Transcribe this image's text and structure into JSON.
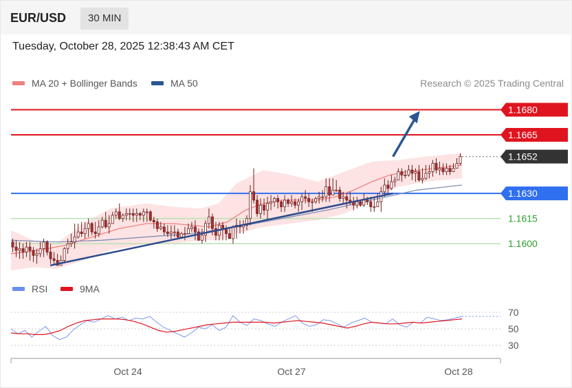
{
  "header": {
    "pair": "EUR/USD",
    "timeframe": "30 MIN"
  },
  "datetime": "Tuesday, October 28, 2025 12:38:43 AM CET",
  "legend": [
    {
      "label": "MA 20 + Bollinger Bands",
      "color": "#f08080"
    },
    {
      "label": "MA 50",
      "color": "#2b5592"
    }
  ],
  "credit": "Research © 2025 Trading Central",
  "chart_data": {
    "type": "candlestick",
    "x_ticks": [
      "Oct 24",
      "Oct 27",
      "Oct 28"
    ],
    "ylim": [
      1.1582,
      1.1688
    ],
    "levels": [
      {
        "value": 1.168,
        "label": "1.1680",
        "kind": "resistance",
        "color": "#e0141e"
      },
      {
        "value": 1.1665,
        "label": "1.1665",
        "kind": "resistance",
        "color": "#e0141e"
      },
      {
        "value": 1.1652,
        "label": "1.1652",
        "kind": "last_price",
        "color": "#333333"
      },
      {
        "value": 1.163,
        "label": "1.1630",
        "kind": "pivot",
        "color": "#2f6ff0"
      },
      {
        "value": 1.1615,
        "label": "1.1615",
        "kind": "support",
        "color": "#2e9d2e"
      },
      {
        "value": 1.16,
        "label": "1.1600",
        "kind": "support",
        "color": "#2e9d2e"
      }
    ],
    "trendline": [
      [
        0.087,
        1.1587
      ],
      [
        0.847,
        1.163
      ]
    ],
    "forecast_arrow": [
      [
        0.847,
        1.1652
      ],
      [
        0.905,
        1.1678
      ]
    ],
    "candles": [
      [
        1.1601,
        1.1598,
        1.1603,
        1.1595
      ],
      [
        1.1598,
        1.1596,
        1.1602,
        1.1592
      ],
      [
        1.1596,
        1.1597,
        1.1601,
        1.1591
      ],
      [
        1.1597,
        1.1595,
        1.16,
        1.1591
      ],
      [
        1.1595,
        1.1598,
        1.1601,
        1.1592
      ],
      [
        1.1598,
        1.1596,
        1.1601,
        1.159
      ],
      [
        1.1596,
        1.1593,
        1.1598,
        1.1589
      ],
      [
        1.1593,
        1.1594,
        1.1597,
        1.1588
      ],
      [
        1.1594,
        1.1597,
        1.1601,
        1.1592
      ],
      [
        1.1597,
        1.1601,
        1.1603,
        1.1592
      ],
      [
        1.1601,
        1.1595,
        1.1602,
        1.1593
      ],
      [
        1.1595,
        1.1591,
        1.16,
        1.1588
      ],
      [
        1.1591,
        1.159,
        1.1595,
        1.1587
      ],
      [
        1.159,
        1.1587,
        1.1594,
        1.1587
      ],
      [
        1.1587,
        1.159,
        1.1593,
        1.1587
      ],
      [
        1.159,
        1.1597,
        1.1598,
        1.1589
      ],
      [
        1.1597,
        1.16,
        1.1603,
        1.1594
      ],
      [
        1.16,
        1.1601,
        1.1606,
        1.1598
      ],
      [
        1.1601,
        1.1604,
        1.1612,
        1.1597
      ],
      [
        1.1604,
        1.1607,
        1.1612,
        1.1603
      ],
      [
        1.1607,
        1.1606,
        1.1613,
        1.1604
      ],
      [
        1.1606,
        1.1609,
        1.1613,
        1.1603
      ],
      [
        1.1609,
        1.1612,
        1.1615,
        1.1604
      ],
      [
        1.1612,
        1.1607,
        1.1613,
        1.1605
      ],
      [
        1.1607,
        1.1606,
        1.1613,
        1.1603
      ],
      [
        1.1606,
        1.161,
        1.1614,
        1.1604
      ],
      [
        1.161,
        1.1614,
        1.1616,
        1.1609
      ],
      [
        1.1614,
        1.161,
        1.1619,
        1.1609
      ],
      [
        1.161,
        1.1612,
        1.1617,
        1.1606
      ],
      [
        1.1612,
        1.1617,
        1.1619,
        1.1612
      ],
      [
        1.1617,
        1.1619,
        1.1621,
        1.1615
      ],
      [
        1.1619,
        1.1615,
        1.1624,
        1.1614
      ],
      [
        1.1615,
        1.1617,
        1.1618,
        1.1613
      ],
      [
        1.1617,
        1.1618,
        1.1621,
        1.1614
      ],
      [
        1.1618,
        1.1618,
        1.1621,
        1.1614
      ],
      [
        1.1618,
        1.1617,
        1.1621,
        1.1613
      ],
      [
        1.1617,
        1.1618,
        1.1621,
        1.1613
      ],
      [
        1.1618,
        1.1617,
        1.1619,
        1.1614
      ],
      [
        1.1617,
        1.1619,
        1.1621,
        1.1613
      ],
      [
        1.1619,
        1.1619,
        1.1621,
        1.1613
      ],
      [
        1.1619,
        1.1614,
        1.162,
        1.1613
      ],
      [
        1.1614,
        1.1613,
        1.1616,
        1.1609
      ],
      [
        1.1613,
        1.1609,
        1.1615,
        1.1607
      ],
      [
        1.1609,
        1.161,
        1.1613,
        1.1608
      ],
      [
        1.161,
        1.1607,
        1.1612,
        1.1605
      ],
      [
        1.1607,
        1.1606,
        1.1611,
        1.1604
      ],
      [
        1.1606,
        1.1607,
        1.1611,
        1.1603
      ],
      [
        1.1607,
        1.1607,
        1.1611,
        1.1604
      ],
      [
        1.1607,
        1.1604,
        1.1609,
        1.1603
      ],
      [
        1.1604,
        1.1606,
        1.1607,
        1.1603
      ],
      [
        1.1606,
        1.1606,
        1.161,
        1.1602
      ],
      [
        1.1606,
        1.1609,
        1.1612,
        1.1606
      ],
      [
        1.1609,
        1.161,
        1.1613,
        1.1607
      ],
      [
        1.161,
        1.1607,
        1.1614,
        1.1602
      ],
      [
        1.1607,
        1.1602,
        1.1609,
        1.1602
      ],
      [
        1.1602,
        1.1605,
        1.1609,
        1.16
      ],
      [
        1.1605,
        1.1612,
        1.1614,
        1.1601
      ],
      [
        1.1612,
        1.1616,
        1.1621,
        1.1609
      ],
      [
        1.1616,
        1.1609,
        1.1618,
        1.1605
      ],
      [
        1.1609,
        1.1605,
        1.1613,
        1.1602
      ],
      [
        1.1605,
        1.1611,
        1.1613,
        1.1602
      ],
      [
        1.1611,
        1.1609,
        1.1613,
        1.1602
      ],
      [
        1.1609,
        1.1606,
        1.1611,
        1.1602
      ],
      [
        1.1606,
        1.1603,
        1.1609,
        1.1603
      ],
      [
        1.1603,
        1.161,
        1.1611,
        1.16
      ],
      [
        1.161,
        1.1611,
        1.1615,
        1.1603
      ],
      [
        1.1611,
        1.161,
        1.1614,
        1.1606
      ],
      [
        1.161,
        1.1611,
        1.1614,
        1.1606
      ],
      [
        1.1611,
        1.1615,
        1.1617,
        1.1608
      ],
      [
        1.1615,
        1.1631,
        1.1635,
        1.1611
      ],
      [
        1.1631,
        1.1626,
        1.1645,
        1.1624
      ],
      [
        1.1626,
        1.1618,
        1.1629,
        1.1616
      ],
      [
        1.1618,
        1.1623,
        1.1627,
        1.1615
      ],
      [
        1.1623,
        1.162,
        1.1627,
        1.1617
      ],
      [
        1.162,
        1.1624,
        1.1628,
        1.1614
      ],
      [
        1.1624,
        1.1625,
        1.1629,
        1.162
      ],
      [
        1.1625,
        1.1627,
        1.1628,
        1.1622
      ],
      [
        1.1627,
        1.1625,
        1.1629,
        1.1621
      ],
      [
        1.1625,
        1.1622,
        1.1626,
        1.1619
      ],
      [
        1.1622,
        1.1626,
        1.1629,
        1.1619
      ],
      [
        1.1626,
        1.1624,
        1.1627,
        1.1622
      ],
      [
        1.1624,
        1.1625,
        1.1629,
        1.1622
      ],
      [
        1.1625,
        1.1623,
        1.1627,
        1.1621
      ],
      [
        1.1623,
        1.1625,
        1.1627,
        1.1619
      ],
      [
        1.1625,
        1.1628,
        1.163,
        1.162
      ],
      [
        1.1628,
        1.1627,
        1.1632,
        1.1624
      ],
      [
        1.1627,
        1.1625,
        1.163,
        1.1622
      ],
      [
        1.1625,
        1.1625,
        1.1627,
        1.1619
      ],
      [
        1.1625,
        1.1627,
        1.1628,
        1.1624
      ],
      [
        1.1627,
        1.1628,
        1.1631,
        1.1624
      ],
      [
        1.1628,
        1.1628,
        1.1632,
        1.1625
      ],
      [
        1.1628,
        1.1634,
        1.1639,
        1.1625
      ],
      [
        1.1634,
        1.1629,
        1.1639,
        1.1625
      ],
      [
        1.1629,
        1.1632,
        1.1639,
        1.1629
      ],
      [
        1.1632,
        1.1632,
        1.1638,
        1.1631
      ],
      [
        1.1632,
        1.1627,
        1.1634,
        1.1625
      ],
      [
        1.1627,
        1.1628,
        1.1631,
        1.1624
      ],
      [
        1.1628,
        1.1626,
        1.163,
        1.1621
      ],
      [
        1.1626,
        1.1625,
        1.1631,
        1.1623
      ],
      [
        1.1625,
        1.1623,
        1.1628,
        1.162
      ],
      [
        1.1623,
        1.1625,
        1.1628,
        1.1621
      ],
      [
        1.1625,
        1.1623,
        1.1626,
        1.1622
      ],
      [
        1.1623,
        1.1626,
        1.163,
        1.1622
      ],
      [
        1.1626,
        1.1625,
        1.1628,
        1.1623
      ],
      [
        1.1625,
        1.1622,
        1.1628,
        1.1619
      ],
      [
        1.1622,
        1.1622,
        1.1627,
        1.1619
      ],
      [
        1.1622,
        1.1625,
        1.163,
        1.1622
      ],
      [
        1.1625,
        1.1631,
        1.1634,
        1.1619
      ],
      [
        1.1631,
        1.1635,
        1.1639,
        1.1628
      ],
      [
        1.1635,
        1.1633,
        1.1638,
        1.1629
      ],
      [
        1.1633,
        1.1637,
        1.1641,
        1.1632
      ],
      [
        1.1637,
        1.1638,
        1.164,
        1.1634
      ],
      [
        1.1638,
        1.1643,
        1.1645,
        1.1638
      ],
      [
        1.1643,
        1.1641,
        1.1645,
        1.1637
      ],
      [
        1.1641,
        1.1641,
        1.1644,
        1.1639
      ],
      [
        1.1641,
        1.1644,
        1.1647,
        1.164
      ],
      [
        1.1644,
        1.1642,
        1.1647,
        1.1638
      ],
      [
        1.1642,
        1.1643,
        1.1645,
        1.1637
      ],
      [
        1.1643,
        1.1638,
        1.1647,
        1.1637
      ],
      [
        1.1638,
        1.1639,
        1.1645,
        1.1636
      ],
      [
        1.1639,
        1.1642,
        1.1647,
        1.1638
      ],
      [
        1.1642,
        1.1643,
        1.1647,
        1.1639
      ],
      [
        1.1643,
        1.1648,
        1.165,
        1.164
      ],
      [
        1.1648,
        1.1644,
        1.1651,
        1.1642
      ],
      [
        1.1644,
        1.1645,
        1.1649,
        1.1641
      ],
      [
        1.1645,
        1.1643,
        1.1648,
        1.1641
      ],
      [
        1.1643,
        1.1645,
        1.1648,
        1.1641
      ],
      [
        1.1645,
        1.1643,
        1.1647,
        1.1641
      ],
      [
        1.1643,
        1.1645,
        1.1648,
        1.1643
      ],
      [
        1.1645,
        1.1648,
        1.1651,
        1.1645
      ],
      [
        1.1648,
        1.1652,
        1.1654,
        1.1647
      ]
    ],
    "ma20": [
      [
        0.0,
        1.1594
      ],
      [
        0.06,
        1.1596
      ],
      [
        0.12,
        1.1599
      ],
      [
        0.18,
        1.1604
      ],
      [
        0.24,
        1.1609
      ],
      [
        0.3,
        1.1612
      ],
      [
        0.36,
        1.1612
      ],
      [
        0.4,
        1.1611
      ],
      [
        0.44,
        1.161
      ],
      [
        0.48,
        1.1613
      ],
      [
        0.52,
        1.162
      ],
      [
        0.56,
        1.1624
      ],
      [
        0.6,
        1.1626
      ],
      [
        0.64,
        1.1626
      ],
      [
        0.68,
        1.1626
      ],
      [
        0.72,
        1.1628
      ],
      [
        0.76,
        1.1632
      ],
      [
        0.8,
        1.1637
      ],
      [
        0.84,
        1.1641
      ],
      [
        0.88,
        1.1643
      ],
      [
        0.94,
        1.1645
      ],
      [
        1.0,
        1.1647
      ]
    ],
    "ma50": [
      [
        0.0,
        1.1602
      ],
      [
        0.1,
        1.1601
      ],
      [
        0.2,
        1.1602
      ],
      [
        0.3,
        1.1604
      ],
      [
        0.4,
        1.1606
      ],
      [
        0.5,
        1.161
      ],
      [
        0.6,
        1.1615
      ],
      [
        0.7,
        1.162
      ],
      [
        0.8,
        1.1626
      ],
      [
        0.9,
        1.1632
      ],
      [
        1.0,
        1.1635
      ]
    ],
    "bb_upper": [
      [
        0.0,
        1.1608
      ],
      [
        0.05,
        1.1602
      ],
      [
        0.1,
        1.16
      ],
      [
        0.16,
        1.1612
      ],
      [
        0.22,
        1.1621
      ],
      [
        0.3,
        1.1624
      ],
      [
        0.36,
        1.1622
      ],
      [
        0.42,
        1.1621
      ],
      [
        0.46,
        1.1624
      ],
      [
        0.5,
        1.1636
      ],
      [
        0.56,
        1.1644
      ],
      [
        0.62,
        1.1641
      ],
      [
        0.68,
        1.1637
      ],
      [
        0.74,
        1.1643
      ],
      [
        0.8,
        1.1649
      ],
      [
        0.86,
        1.165
      ],
      [
        0.92,
        1.1652
      ],
      [
        1.0,
        1.1654
      ]
    ],
    "bb_lower": [
      [
        0.0,
        1.1584
      ],
      [
        0.05,
        1.1586
      ],
      [
        0.1,
        1.1585
      ],
      [
        0.16,
        1.159
      ],
      [
        0.22,
        1.1596
      ],
      [
        0.3,
        1.16
      ],
      [
        0.36,
        1.16
      ],
      [
        0.42,
        1.1602
      ],
      [
        0.46,
        1.1602
      ],
      [
        0.5,
        1.1606
      ],
      [
        0.56,
        1.161
      ],
      [
        0.62,
        1.1612
      ],
      [
        0.68,
        1.1614
      ],
      [
        0.74,
        1.1618
      ],
      [
        0.8,
        1.1626
      ],
      [
        0.86,
        1.1634
      ],
      [
        0.92,
        1.1637
      ],
      [
        1.0,
        1.1639
      ]
    ],
    "rsi": {
      "title": "RSI",
      "ma_label": "9MA",
      "y_ticks": [
        70,
        50,
        30
      ],
      "ylim": [
        25,
        75
      ],
      "rsi_values": [
        50,
        44,
        48,
        40,
        47,
        53,
        42,
        37,
        40,
        49,
        55,
        60,
        58,
        62,
        66,
        62,
        64,
        60,
        63,
        62,
        65,
        58,
        52,
        48,
        44,
        40,
        45,
        52,
        50,
        55,
        48,
        52,
        66,
        58,
        54,
        62,
        60,
        56,
        53,
        58,
        62,
        66,
        57,
        53,
        55,
        61,
        60,
        56,
        52,
        57,
        60,
        63,
        58,
        57,
        56,
        62,
        55,
        52,
        58,
        57,
        64,
        62,
        60,
        61,
        63,
        65
      ],
      "ma_values": [
        45,
        44,
        44,
        43,
        43,
        45,
        48,
        53,
        57,
        60,
        61,
        62,
        62,
        62,
        61,
        59,
        56,
        52,
        48,
        46,
        47,
        49,
        51,
        53,
        55,
        56,
        57,
        58,
        58,
        58,
        58,
        58,
        57,
        58,
        59,
        60,
        59,
        58,
        57,
        55,
        53,
        51,
        53,
        56,
        58,
        57,
        56,
        56,
        57,
        58,
        57,
        58,
        59,
        60,
        61,
        62
      ]
    }
  }
}
